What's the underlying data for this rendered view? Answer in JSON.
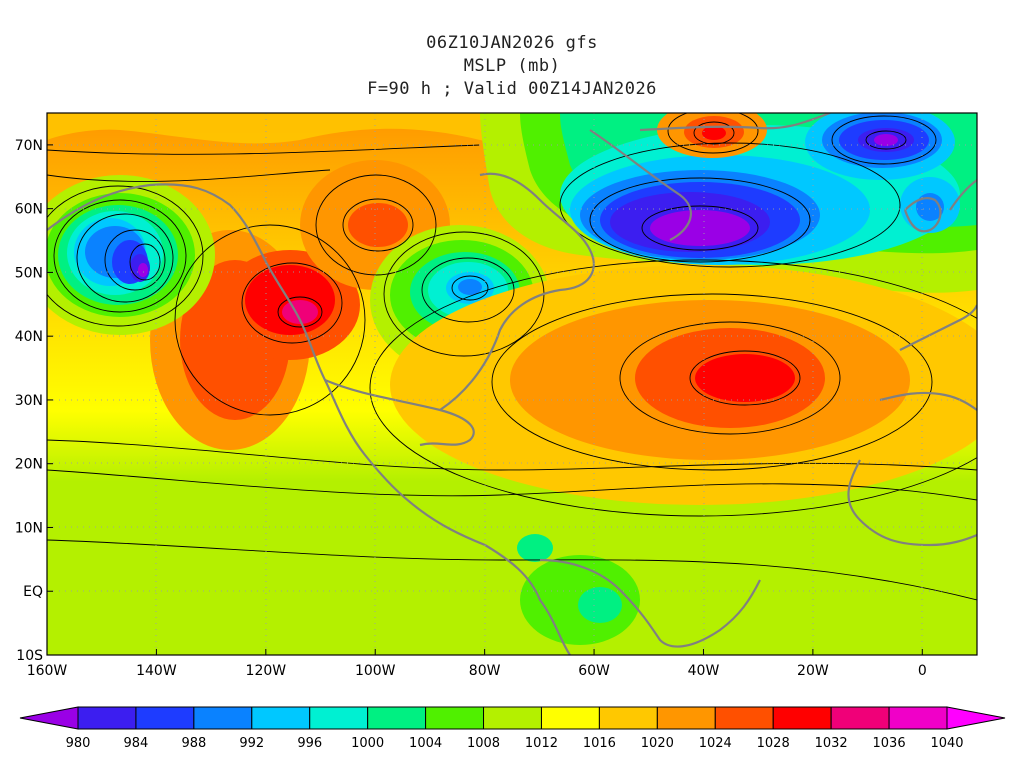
{
  "title": {
    "line1": "06Z10JAN2026 gfs",
    "line2": "MSLP (mb)",
    "line3": "F=90 h ; Valid 00Z14JAN2026"
  },
  "map": {
    "lon_range": [
      -160,
      10
    ],
    "lat_range": [
      -10,
      75
    ],
    "lat_ticks": [
      "70N",
      "60N",
      "50N",
      "40N",
      "30N",
      "20N",
      "10N",
      "EQ",
      "10S"
    ],
    "lon_ticks": [
      "160W",
      "140W",
      "120W",
      "100W",
      "80W",
      "60W",
      "40W",
      "20W",
      "0"
    ]
  },
  "colorbar": {
    "labels": [
      "980",
      "984",
      "988",
      "992",
      "996",
      "1000",
      "1004",
      "1008",
      "1012",
      "1016",
      "1020",
      "1024",
      "1028",
      "1032",
      "1036",
      "1040"
    ],
    "colors": [
      "#9a00e6",
      "#3c1ef0",
      "#1e3cff",
      "#0a82ff",
      "#00c8ff",
      "#00f0d2",
      "#00f082",
      "#50f000",
      "#b4f000",
      "#ffff00",
      "#ffc800",
      "#ff9600",
      "#ff5000",
      "#ff0000",
      "#f00078",
      "#f000c8",
      "#ff00ff"
    ]
  },
  "features": {
    "highs": [
      {
        "name": "azores-high",
        "lon": -32,
        "lat": 33,
        "value": 1032
      },
      {
        "name": "great-basin-high",
        "lon": -115,
        "lat": 45,
        "value": 1036
      },
      {
        "name": "greenland-high",
        "lon": -38,
        "lat": 72,
        "value": 1030
      },
      {
        "name": "hudson-bay-high",
        "lon": -100,
        "lat": 57,
        "value": 1028
      },
      {
        "name": "eastern-pacific-ridge",
        "lon": -131,
        "lat": 35,
        "value": 1028
      }
    ],
    "lows": [
      {
        "name": "gulf-of-alaska-low",
        "lon": -145,
        "lat": 51,
        "value": 980
      },
      {
        "name": "north-atlantic-low",
        "lon": -45,
        "lat": 57,
        "value": 980
      },
      {
        "name": "great-lakes-low",
        "lon": -85,
        "lat": 47,
        "value": 996
      },
      {
        "name": "norwegian-sea-low",
        "lon": -8,
        "lat": 71,
        "value": 980
      },
      {
        "name": "uk-low",
        "lon": -8,
        "lat": 61,
        "value": 996
      }
    ]
  }
}
